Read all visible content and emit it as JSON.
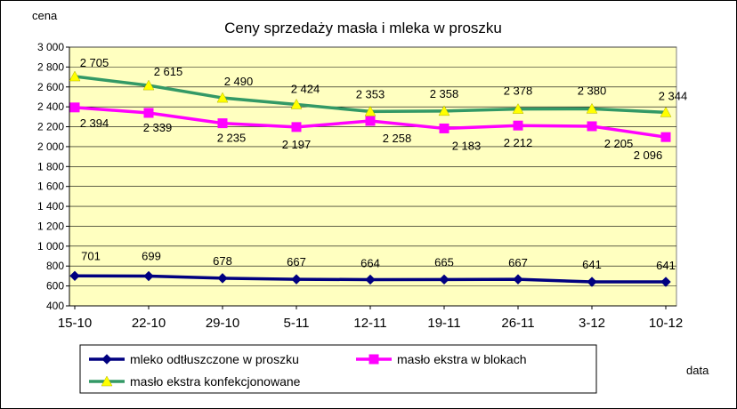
{
  "chart_data": {
    "type": "line",
    "title": "Ceny sprzedaży masła i mleka w proszku",
    "ylabel": "cena",
    "xlabel": "data",
    "categories": [
      "15-10",
      "22-10",
      "29-10",
      "5-11",
      "12-11",
      "19-11",
      "26-11",
      "3-12",
      "10-12"
    ],
    "ylim": [
      400,
      3000
    ],
    "yticks": [
      400,
      600,
      800,
      1000,
      1200,
      1400,
      1600,
      1800,
      2000,
      2200,
      2400,
      2600,
      2800,
      3000
    ],
    "ytick_labels": [
      "400",
      "600",
      "800",
      "1 000",
      "1 200",
      "1 400",
      "1 600",
      "1 800",
      "2 000",
      "2 200",
      "2 400",
      "2 600",
      "2 800",
      "3 000"
    ],
    "grid": true,
    "plot_background": "#ffffc0",
    "legend_position": "bottom",
    "series": [
      {
        "name": "mleko odtłuszczone w proszku",
        "color": "#000080",
        "marker": "diamond",
        "values": [
          701,
          699,
          678,
          667,
          664,
          665,
          667,
          641,
          641
        ],
        "labels": [
          "701",
          "699",
          "678",
          "667",
          "664",
          "665",
          "667",
          "641",
          "641"
        ]
      },
      {
        "name": "masło ekstra w blokach",
        "color": "#ff00ff",
        "marker": "square",
        "values": [
          2394,
          2339,
          2235,
          2197,
          2258,
          2183,
          2212,
          2205,
          2096
        ],
        "labels": [
          "2 394",
          "2 339",
          "2 235",
          "2 197",
          "2 258",
          "2 183",
          "2 212",
          "2 205",
          "2 096"
        ]
      },
      {
        "name": "masło ekstra konfekcjonowane",
        "color": "#339966",
        "marker_color": "#ffff00",
        "marker": "triangle",
        "values": [
          2705,
          2615,
          2490,
          2424,
          2353,
          2358,
          2378,
          2380,
          2344
        ],
        "labels": [
          "2 705",
          "2 615",
          "2 490",
          "2 424",
          "2 353",
          "2 358",
          "2 378",
          "2 380",
          "2 344"
        ]
      }
    ]
  }
}
